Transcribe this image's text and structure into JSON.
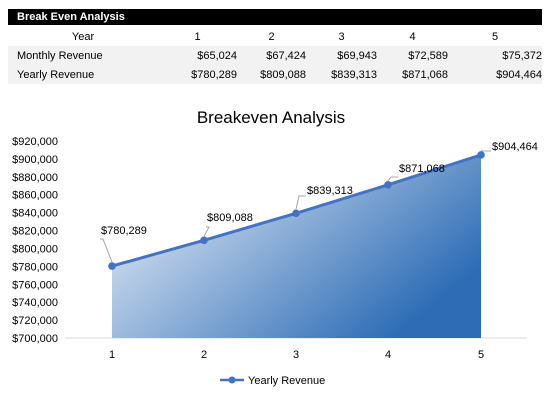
{
  "sheet": {
    "title": "Break Even Analysis",
    "year_label": "Year",
    "years": [
      "1",
      "2",
      "3",
      "4",
      "5"
    ],
    "rows": [
      {
        "label": "Monthly Revenue",
        "values": [
          "$65,024",
          "$67,424",
          "$69,943",
          "$72,589",
          "$75,372"
        ]
      },
      {
        "label": "Yearly Revenue",
        "values": [
          "$780,289",
          "$809,088",
          "$839,313",
          "$871,068",
          "$904,464"
        ]
      }
    ]
  },
  "chart_data": {
    "type": "area",
    "title": "Breakeven Analysis",
    "categories": [
      "1",
      "2",
      "3",
      "4",
      "5"
    ],
    "series": [
      {
        "name": "Yearly Revenue",
        "values": [
          780289,
          809088,
          839313,
          871068,
          904464
        ],
        "labels": [
          "$780,289",
          "$809,088",
          "$839,313",
          "$871,068",
          "$904,464"
        ]
      }
    ],
    "ylim": [
      700000,
      920000
    ],
    "ytick_step": 20000,
    "yticks": [
      "$700,000",
      "$720,000",
      "$740,000",
      "$760,000",
      "$780,000",
      "$800,000",
      "$820,000",
      "$840,000",
      "$860,000",
      "$880,000",
      "$900,000",
      "$920,000"
    ],
    "grid": false,
    "legend": "bottom",
    "colors": {
      "line": "#4472c4",
      "fill_light": "#f6f8fc",
      "fill_dark": "#2e6db5"
    }
  }
}
